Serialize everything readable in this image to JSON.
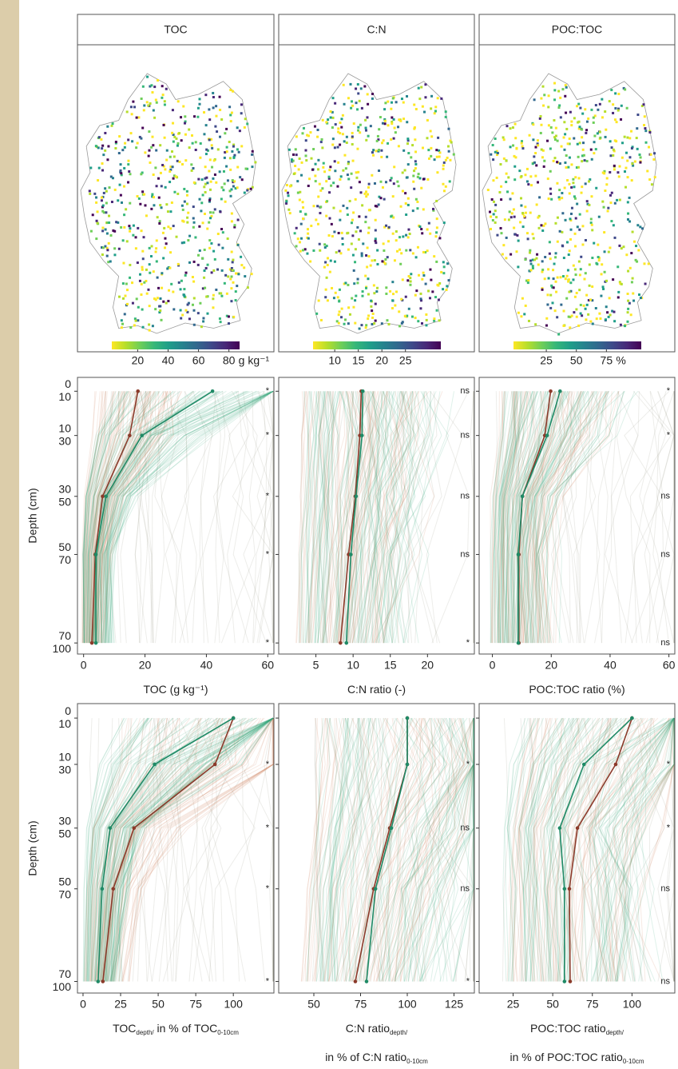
{
  "chart_data": [
    {
      "type": "map",
      "title": "TOC",
      "cbar_lim": [
        3,
        87
      ],
      "cbar_ticks": [
        20,
        40,
        60,
        80
      ],
      "cbar_unit": "g kg⁻¹"
    },
    {
      "type": "map",
      "title": "C:N",
      "cbar_lim": [
        5.4,
        32.5
      ],
      "cbar_ticks": [
        10,
        15,
        20,
        25
      ]
    },
    {
      "type": "map",
      "title": "POC:TOC",
      "cbar_lim": [
        -2.3,
        104
      ],
      "cbar_ticks": [
        25,
        50,
        75
      ],
      "cbar_unit": "%"
    },
    {
      "type": "line",
      "ylabel": "Depth (cm)",
      "depth_top": [
        "0",
        "10",
        "30",
        "50",
        "70"
      ],
      "depth_bottom": [
        "10",
        "30",
        "50",
        "70",
        "100"
      ],
      "xlabel_lines": [
        [
          "TOC (g kg⁻¹)"
        ]
      ],
      "xlim": [
        -2,
        62
      ],
      "xticks": [
        0,
        20,
        40,
        60
      ],
      "series": [
        {
          "color": "#8b3a2a",
          "values": [
            17.7,
            15,
            6.2,
            3.8,
            2.7
          ]
        },
        {
          "color": "#1f8a66",
          "values": [
            42,
            19,
            7.3,
            4,
            4
          ]
        }
      ],
      "significance": [
        "*",
        "*",
        "*",
        "*",
        "*"
      ]
    },
    {
      "type": "line",
      "xlabel_lines": [
        [
          "C:N ratio (-)"
        ]
      ],
      "xlim": [
        0,
        26.3
      ],
      "xticks": [
        5,
        10,
        15,
        20
      ],
      "series": [
        {
          "color": "#8b3a2a",
          "values": [
            11.1,
            10.9,
            10.3,
            9.4,
            8.3
          ]
        },
        {
          "color": "#1f8a66",
          "values": [
            11.3,
            11.2,
            10.4,
            9.7,
            9.1
          ]
        }
      ],
      "significance": [
        "ns",
        "ns",
        "ns",
        "ns",
        "*"
      ]
    },
    {
      "type": "line",
      "xlabel_lines": [
        [
          "POC:TOC ratio (%)"
        ]
      ],
      "xlim": [
        -4.5,
        62
      ],
      "xticks": [
        0,
        20,
        40,
        60
      ],
      "series": [
        {
          "color": "#8b3a2a",
          "values": [
            19.8,
            17.8,
            10.2,
            9,
            9
          ]
        },
        {
          "color": "#1f8a66",
          "values": [
            23,
            18.6,
            10.2,
            8.8,
            8.8
          ]
        }
      ],
      "significance": [
        "*",
        "*",
        "ns",
        "ns",
        "ns"
      ]
    },
    {
      "type": "line",
      "ylabel": "Depth (cm)",
      "depth_top": [
        "0",
        "10",
        "30",
        "50",
        "70"
      ],
      "depth_bottom": [
        "10",
        "30",
        "50",
        "70",
        "100"
      ],
      "xlabel_lines": [
        [
          "TOC",
          "depth/",
          " in % of TOC",
          "0-10cm"
        ]
      ],
      "xlim": [
        -3.7,
        127
      ],
      "xticks": [
        0,
        25,
        50,
        75,
        100
      ],
      "series": [
        {
          "color": "#8b3a2a",
          "values": [
            100,
            87.8,
            33.9,
            20.1,
            13.2
          ]
        },
        {
          "color": "#1f8a66",
          "values": [
            100,
            47.6,
            18,
            12.7,
            10
          ]
        }
      ],
      "significance": [
        null,
        "*",
        "*",
        "*",
        "*"
      ]
    },
    {
      "type": "line",
      "xlabel_lines": [
        [
          "C:N ratio",
          "depth/"
        ],
        [
          "in % of C:N ratio",
          "0-10cm"
        ]
      ],
      "xlim": [
        31.2,
        135.9
      ],
      "xticks": [
        50,
        75,
        100,
        125
      ],
      "series": [
        {
          "color": "#8b3a2a",
          "values": [
            100,
            100,
            90.6,
            82,
            72.2
          ]
        },
        {
          "color": "#1f8a66",
          "values": [
            100,
            100,
            91.5,
            83,
            78.2
          ]
        }
      ],
      "significance": [
        null,
        "*",
        "ns",
        "ns",
        "*"
      ]
    },
    {
      "type": "line",
      "xlabel_lines": [
        [
          "POC:TOC ratio",
          "depth/"
        ],
        [
          "in % of POC:TOC ratio",
          "0-10cm"
        ]
      ],
      "xlim": [
        3.6,
        127
      ],
      "xticks": [
        25,
        50,
        75,
        100
      ],
      "series": [
        {
          "color": "#8b3a2a",
          "values": [
            100,
            89.7,
            65.6,
            60.5,
            61
          ]
        },
        {
          "color": "#1f8a66",
          "values": [
            100,
            69.7,
            54.4,
            57.4,
            57.4
          ]
        }
      ],
      "significance": [
        null,
        "*",
        "*",
        "ns",
        "ns"
      ]
    }
  ]
}
